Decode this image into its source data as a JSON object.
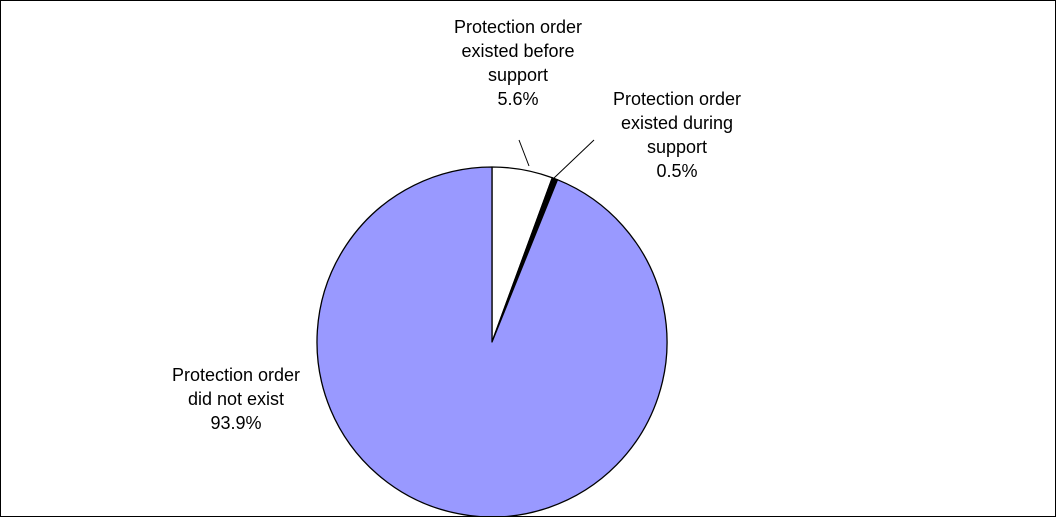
{
  "chart_data": {
    "type": "pie",
    "title": "",
    "start_angle_deg": 0,
    "direction": "clockwise",
    "slices": [
      {
        "label_lines": [
          "Protection order",
          "existed before",
          "support"
        ],
        "value": 5.6,
        "value_label": "5.6%",
        "color": "#ffffff"
      },
      {
        "label_lines": [
          "Protection order",
          "existed during",
          "support"
        ],
        "value": 0.5,
        "value_label": "0.5%",
        "color": "#000000"
      },
      {
        "label_lines": [
          "Protection order",
          "did not exist"
        ],
        "value": 93.9,
        "value_label": "93.9%",
        "color": "#9999ff"
      }
    ],
    "edge_color": "#000000",
    "legend": "none"
  }
}
